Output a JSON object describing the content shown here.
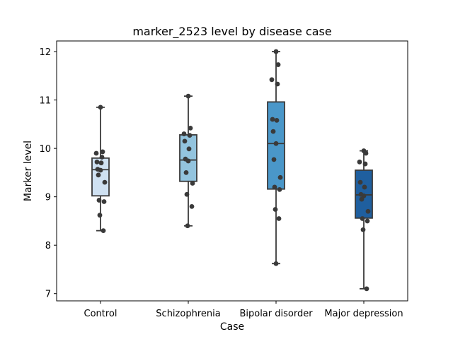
{
  "chart_data": {
    "type": "box",
    "title": "marker_2523 level by disease case",
    "xlabel": "Case",
    "ylabel": "Marker level",
    "categories": [
      "Control",
      "Schizophrenia",
      "Bipolar disorder",
      "Major depression"
    ],
    "ylim": [
      6.85,
      12.22
    ],
    "yticks": [
      7,
      8,
      9,
      10,
      11,
      12
    ],
    "grid": false,
    "legend": "none",
    "colors": [
      "#cfe1f2",
      "#93c4de",
      "#4a97c9",
      "#1f5f9f"
    ],
    "point_color": "#3a3a3a",
    "box_edge_color": "#3a3a3a",
    "boxes": [
      {
        "category": "Control",
        "whisker_low": 8.3,
        "q1": 9.02,
        "median": 9.56,
        "q3": 9.8,
        "whisker_high": 10.85
      },
      {
        "category": "Schizophrenia",
        "whisker_low": 8.4,
        "q1": 9.32,
        "median": 9.76,
        "q3": 10.28,
        "whisker_high": 11.08
      },
      {
        "category": "Bipolar disorder",
        "whisker_low": 7.62,
        "q1": 9.16,
        "median": 10.1,
        "q3": 10.96,
        "whisker_high": 12.0
      },
      {
        "category": "Major depression",
        "whisker_low": 7.1,
        "q1": 8.56,
        "median": 9.04,
        "q3": 9.55,
        "whisker_high": 9.95
      }
    ],
    "points": [
      [
        10.85,
        9.93,
        9.9,
        9.82,
        9.72,
        9.7,
        9.57,
        9.55,
        9.45,
        9.3,
        8.93,
        8.9,
        8.62,
        8.3
      ],
      [
        11.08,
        10.42,
        10.3,
        10.27,
        10.15,
        9.99,
        9.78,
        9.74,
        9.5,
        9.28,
        9.05,
        8.8,
        8.4
      ],
      [
        12.0,
        11.73,
        11.42,
        11.33,
        10.6,
        10.58,
        10.35,
        10.1,
        9.77,
        9.4,
        9.2,
        9.15,
        8.74,
        8.55,
        7.62
      ],
      [
        9.95,
        9.9,
        9.72,
        9.68,
        9.3,
        9.2,
        9.05,
        9.02,
        8.95,
        8.7,
        8.55,
        8.5,
        8.32,
        7.1
      ]
    ]
  }
}
